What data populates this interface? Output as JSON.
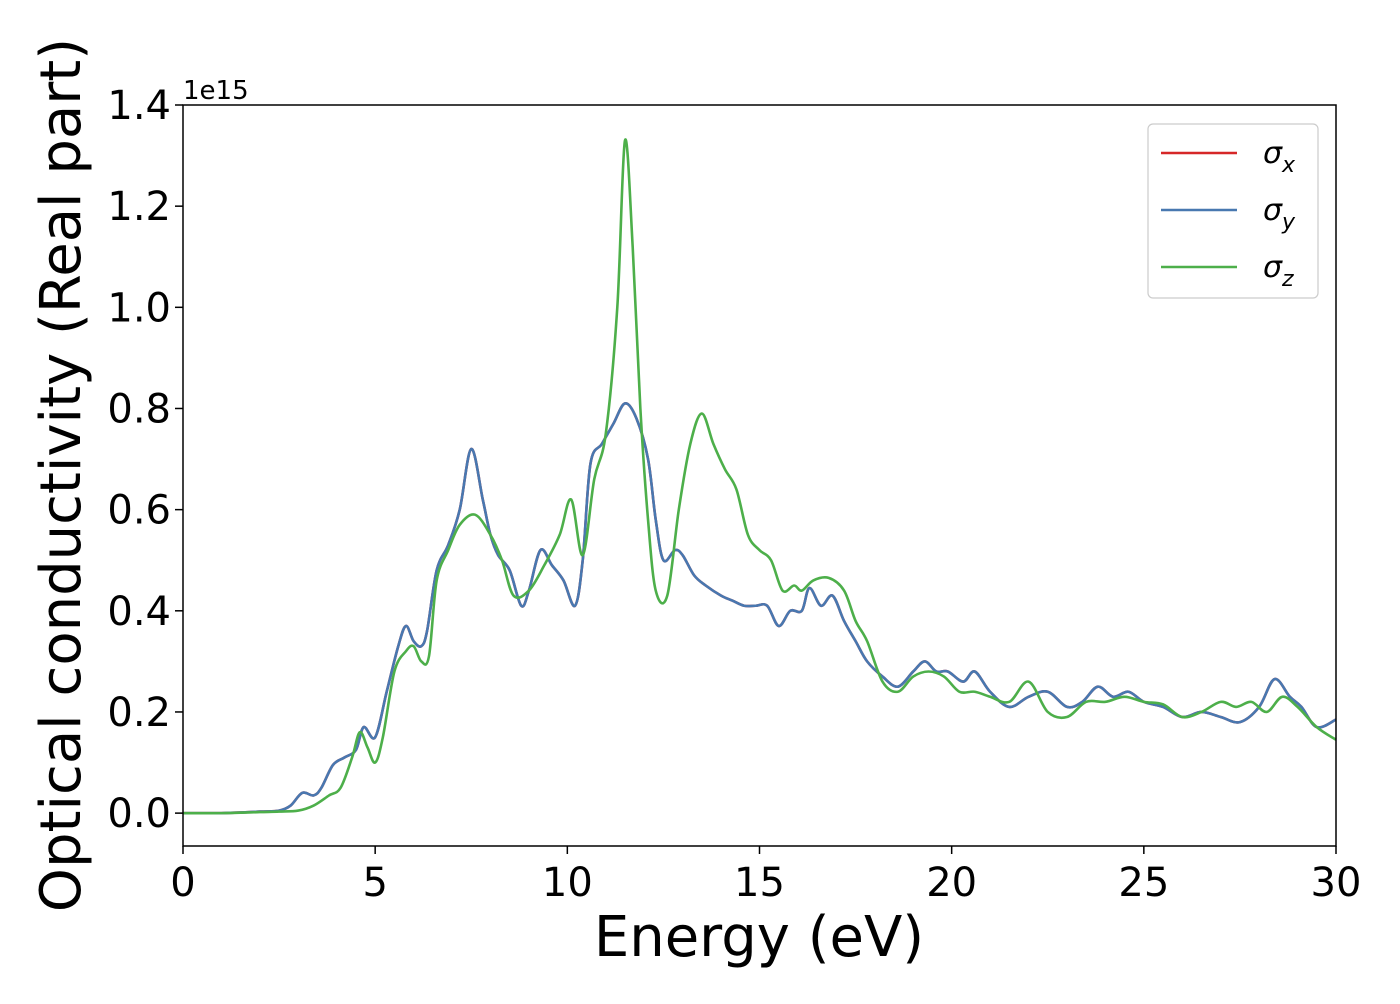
{
  "chart_data": {
    "type": "line",
    "xlabel": "Energy (eV)",
    "ylabel": "Optical conductivity (Real part)",
    "y_offset_text": "1e15",
    "xlim": [
      0,
      30
    ],
    "ylim": [
      -0.065,
      1.4
    ],
    "y_multiplier": 1000000000000000.0,
    "xticks": [
      0,
      5,
      10,
      15,
      20,
      25,
      30
    ],
    "xtick_labels": [
      "0",
      "5",
      "10",
      "15",
      "20",
      "25",
      "30"
    ],
    "yticks": [
      0.0,
      0.2,
      0.4,
      0.6,
      0.8,
      1.0,
      1.2,
      1.4
    ],
    "ytick_labels": [
      "0.0",
      "0.2",
      "0.4",
      "0.6",
      "0.8",
      "1.0",
      "1.2",
      "1.4"
    ],
    "grid": false,
    "legend_position": "top-right",
    "series": [
      {
        "name": "σ",
        "subscript": "x",
        "color": "#d62728",
        "x": [
          0,
          1,
          2,
          2.5,
          2.8,
          3.1,
          3.4,
          3.6,
          3.9,
          4.2,
          4.5,
          4.7,
          5.0,
          5.3,
          5.6,
          5.8,
          6.0,
          6.2,
          6.35,
          6.6,
          6.9,
          7.2,
          7.5,
          7.8,
          8.0,
          8.2,
          8.5,
          8.8,
          9.0,
          9.3,
          9.6,
          9.9,
          10.2,
          10.4,
          10.6,
          10.9,
          11.2,
          11.5,
          11.8,
          12.1,
          12.3,
          12.5,
          12.8,
          13.0,
          13.3,
          13.6,
          14.0,
          14.3,
          14.6,
          14.9,
          15.2,
          15.5,
          15.8,
          16.1,
          16.3,
          16.6,
          16.9,
          17.2,
          17.5,
          17.8,
          18.2,
          18.6,
          19.0,
          19.3,
          19.6,
          19.9,
          20.3,
          20.6,
          21.0,
          21.5,
          22.0,
          22.5,
          23.0,
          23.4,
          23.8,
          24.2,
          24.6,
          25.0,
          25.5,
          26.0,
          26.5,
          27.0,
          27.5,
          28.0,
          28.4,
          28.8,
          29.1,
          29.5,
          30.0
        ],
        "y": [
          0.0,
          0.0,
          0.003,
          0.005,
          0.015,
          0.04,
          0.035,
          0.05,
          0.095,
          0.11,
          0.125,
          0.17,
          0.15,
          0.24,
          0.33,
          0.37,
          0.34,
          0.33,
          0.36,
          0.48,
          0.53,
          0.6,
          0.72,
          0.62,
          0.55,
          0.51,
          0.48,
          0.41,
          0.44,
          0.52,
          0.49,
          0.46,
          0.41,
          0.5,
          0.69,
          0.73,
          0.77,
          0.81,
          0.78,
          0.7,
          0.58,
          0.5,
          0.52,
          0.51,
          0.47,
          0.45,
          0.43,
          0.42,
          0.41,
          0.41,
          0.41,
          0.37,
          0.4,
          0.4,
          0.445,
          0.41,
          0.43,
          0.38,
          0.34,
          0.3,
          0.27,
          0.25,
          0.28,
          0.3,
          0.28,
          0.28,
          0.26,
          0.28,
          0.24,
          0.21,
          0.23,
          0.24,
          0.21,
          0.22,
          0.25,
          0.23,
          0.24,
          0.22,
          0.21,
          0.19,
          0.2,
          0.19,
          0.18,
          0.21,
          0.265,
          0.23,
          0.21,
          0.17,
          0.185
        ]
      },
      {
        "name": "σ",
        "subscript": "y",
        "color": "#4878b0",
        "x": [
          0,
          1,
          2,
          2.5,
          2.8,
          3.1,
          3.4,
          3.6,
          3.9,
          4.2,
          4.5,
          4.7,
          5.0,
          5.3,
          5.6,
          5.8,
          6.0,
          6.2,
          6.35,
          6.6,
          6.9,
          7.2,
          7.5,
          7.8,
          8.0,
          8.2,
          8.5,
          8.8,
          9.0,
          9.3,
          9.6,
          9.9,
          10.2,
          10.4,
          10.6,
          10.9,
          11.2,
          11.5,
          11.8,
          12.1,
          12.3,
          12.5,
          12.8,
          13.0,
          13.3,
          13.6,
          14.0,
          14.3,
          14.6,
          14.9,
          15.2,
          15.5,
          15.8,
          16.1,
          16.3,
          16.6,
          16.9,
          17.2,
          17.5,
          17.8,
          18.2,
          18.6,
          19.0,
          19.3,
          19.6,
          19.9,
          20.3,
          20.6,
          21.0,
          21.5,
          22.0,
          22.5,
          23.0,
          23.4,
          23.8,
          24.2,
          24.6,
          25.0,
          25.5,
          26.0,
          26.5,
          27.0,
          27.5,
          28.0,
          28.4,
          28.8,
          29.1,
          29.5,
          30.0
        ],
        "y": [
          0.0,
          0.0,
          0.003,
          0.005,
          0.015,
          0.04,
          0.035,
          0.05,
          0.095,
          0.11,
          0.125,
          0.17,
          0.15,
          0.24,
          0.33,
          0.37,
          0.34,
          0.33,
          0.36,
          0.48,
          0.53,
          0.6,
          0.72,
          0.62,
          0.55,
          0.51,
          0.48,
          0.41,
          0.44,
          0.52,
          0.49,
          0.46,
          0.41,
          0.5,
          0.69,
          0.73,
          0.77,
          0.81,
          0.78,
          0.7,
          0.58,
          0.5,
          0.52,
          0.51,
          0.47,
          0.45,
          0.43,
          0.42,
          0.41,
          0.41,
          0.41,
          0.37,
          0.4,
          0.4,
          0.445,
          0.41,
          0.43,
          0.38,
          0.34,
          0.3,
          0.27,
          0.25,
          0.28,
          0.3,
          0.28,
          0.28,
          0.26,
          0.28,
          0.24,
          0.21,
          0.23,
          0.24,
          0.21,
          0.22,
          0.25,
          0.23,
          0.24,
          0.22,
          0.21,
          0.19,
          0.2,
          0.19,
          0.18,
          0.21,
          0.265,
          0.23,
          0.21,
          0.17,
          0.185
        ]
      },
      {
        "name": "σ",
        "subscript": "z",
        "color": "#4daf4a",
        "x": [
          0,
          1,
          2,
          2.5,
          3.0,
          3.4,
          3.8,
          4.1,
          4.4,
          4.6,
          4.8,
          5.0,
          5.2,
          5.5,
          5.8,
          6.0,
          6.2,
          6.4,
          6.6,
          6.9,
          7.2,
          7.6,
          8.0,
          8.3,
          8.6,
          9.0,
          9.4,
          9.8,
          10.1,
          10.4,
          10.7,
          11.0,
          11.3,
          11.5,
          11.7,
          11.9,
          12.1,
          12.3,
          12.6,
          12.9,
          13.2,
          13.5,
          13.8,
          14.1,
          14.4,
          14.7,
          15.0,
          15.3,
          15.6,
          15.9,
          16.1,
          16.4,
          16.8,
          17.2,
          17.5,
          17.8,
          18.2,
          18.6,
          19.0,
          19.4,
          19.8,
          20.2,
          20.6,
          21.0,
          21.5,
          22.0,
          22.5,
          23.0,
          23.5,
          24.0,
          24.5,
          25.0,
          25.5,
          26.0,
          26.5,
          27.0,
          27.4,
          27.8,
          28.2,
          28.6,
          29.0,
          29.5,
          30.0
        ],
        "y": [
          0.0,
          0.0,
          0.002,
          0.003,
          0.005,
          0.015,
          0.035,
          0.05,
          0.11,
          0.16,
          0.13,
          0.1,
          0.15,
          0.28,
          0.32,
          0.33,
          0.3,
          0.31,
          0.46,
          0.52,
          0.57,
          0.59,
          0.55,
          0.5,
          0.43,
          0.44,
          0.49,
          0.55,
          0.62,
          0.51,
          0.66,
          0.75,
          1.0,
          1.33,
          1.12,
          0.8,
          0.58,
          0.44,
          0.43,
          0.6,
          0.73,
          0.79,
          0.73,
          0.68,
          0.64,
          0.55,
          0.52,
          0.5,
          0.44,
          0.45,
          0.44,
          0.46,
          0.465,
          0.44,
          0.38,
          0.34,
          0.26,
          0.24,
          0.27,
          0.28,
          0.27,
          0.24,
          0.24,
          0.23,
          0.22,
          0.26,
          0.2,
          0.19,
          0.22,
          0.22,
          0.23,
          0.22,
          0.215,
          0.19,
          0.2,
          0.22,
          0.21,
          0.22,
          0.2,
          0.23,
          0.21,
          0.17,
          0.145
        ]
      }
    ]
  }
}
